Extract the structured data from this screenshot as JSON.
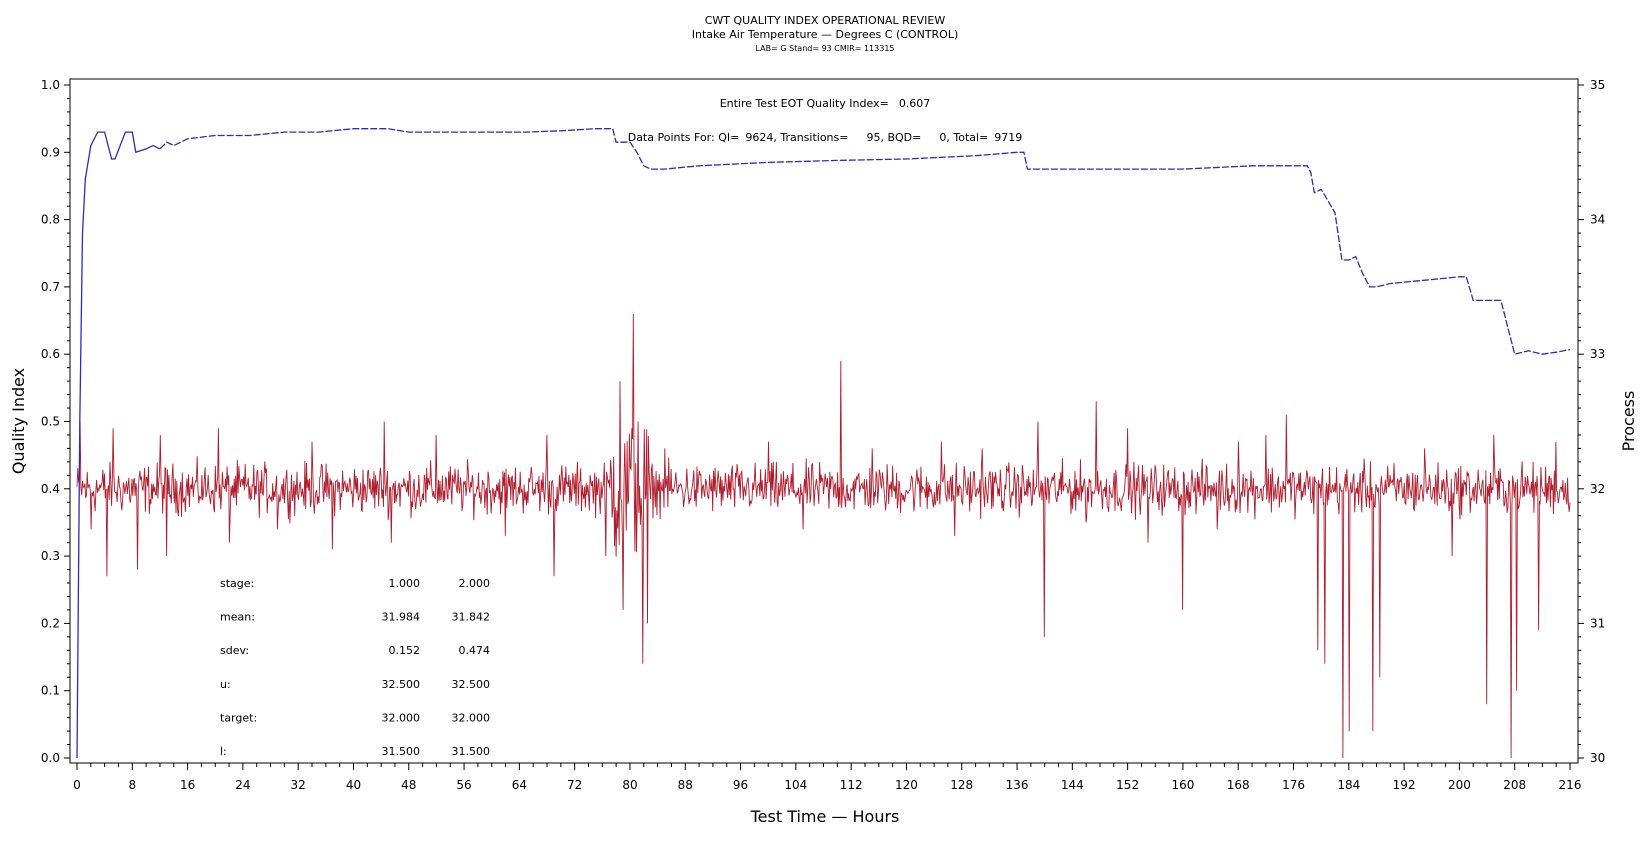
{
  "chart_data": {
    "type": "line",
    "title": "CWT QUALITY INDEX OPERATIONAL REVIEW",
    "subtitle": "Intake Air Temperature — Degrees C (CONTROL)",
    "subtitle2": "LAB= G Stand= 93 CMIR= 113315",
    "xlabel": "Test Time — Hours",
    "ylabel_left": "Quality Index",
    "ylabel_right": "Process",
    "xlim": [
      0,
      216
    ],
    "ylim_left": [
      0.0,
      1.0
    ],
    "ylim_right": [
      30,
      35
    ],
    "x_ticks": [
      "0",
      "8",
      "16",
      "24",
      "32",
      "40",
      "48",
      "56",
      "64",
      "72",
      "80",
      "88",
      "96",
      "104",
      "112",
      "120",
      "128",
      "136",
      "144",
      "152",
      "160",
      "168",
      "176",
      "184",
      "192",
      "200",
      "208",
      "216"
    ],
    "y_left_ticks": [
      "0.0",
      "0.1",
      "0.2",
      "0.3",
      "0.4",
      "0.5",
      "0.6",
      "0.7",
      "0.8",
      "0.9",
      "1.0"
    ],
    "y_right_ticks": [
      "30",
      "31",
      "32",
      "33",
      "34",
      "35"
    ],
    "annotations": {
      "eot_label": "Entire Test EOT Quality Index=",
      "eot_value": "0.607",
      "points_label": "Data Points For: QI=",
      "qi_points": "9624",
      "transitions_label": ", Transitions=",
      "transitions": "95",
      "bqd_label": ", BQD=",
      "bqd": "0",
      "total_label": ", Total=",
      "total": "9719"
    },
    "stats_table": {
      "rows": [
        {
          "label": "stage:",
          "v1": "1.000",
          "v2": "2.000"
        },
        {
          "label": "mean:",
          "v1": "31.984",
          "v2": "31.842"
        },
        {
          "label": "sdev:",
          "v1": "0.152",
          "v2": "0.474"
        },
        {
          "label": "u:",
          "v1": "32.500",
          "v2": "32.500"
        },
        {
          "label": "target:",
          "v1": "32.000",
          "v2": "32.000"
        },
        {
          "label": "l:",
          "v1": "31.500",
          "v2": "31.500"
        }
      ]
    },
    "series": [
      {
        "axis": "left",
        "color": "#2b2bbf",
        "dashed_after": 14,
        "x": [
          0,
          0.4,
          0.8,
          1.2,
          2,
          3,
          4,
          5,
          5.5,
          7,
          8,
          8.5,
          10,
          11,
          12,
          13,
          14,
          15,
          16,
          20,
          25,
          30,
          35,
          40,
          45,
          48,
          50,
          55,
          60,
          65,
          70,
          75,
          77.5,
          78,
          80,
          81,
          82,
          83,
          84,
          85,
          90,
          100,
          110,
          120,
          130,
          136,
          137,
          137.5,
          140,
          150,
          160,
          170,
          178,
          178.5,
          179,
          180,
          182,
          183,
          184,
          185,
          186,
          187,
          188,
          190,
          195,
          200,
          201,
          202,
          205,
          206,
          207,
          208,
          210,
          212,
          214,
          216
        ],
        "values": [
          0.0,
          0.5,
          0.78,
          0.86,
          0.91,
          0.93,
          0.93,
          0.89,
          0.89,
          0.93,
          0.93,
          0.9,
          0.905,
          0.91,
          0.905,
          0.915,
          0.91,
          0.915,
          0.92,
          0.925,
          0.925,
          0.93,
          0.93,
          0.935,
          0.935,
          0.93,
          0.93,
          0.93,
          0.93,
          0.93,
          0.932,
          0.935,
          0.935,
          0.915,
          0.915,
          0.9,
          0.88,
          0.875,
          0.875,
          0.875,
          0.88,
          0.885,
          0.888,
          0.89,
          0.895,
          0.9,
          0.9,
          0.875,
          0.875,
          0.875,
          0.875,
          0.88,
          0.88,
          0.87,
          0.84,
          0.845,
          0.81,
          0.74,
          0.74,
          0.745,
          0.72,
          0.7,
          0.7,
          0.705,
          0.71,
          0.715,
          0.715,
          0.68,
          0.68,
          0.68,
          0.64,
          0.6,
          0.605,
          0.6,
          0.603,
          0.607
        ]
      },
      {
        "axis": "right",
        "color": "#b01c2e",
        "baseline": 32.0,
        "spikes": [
          {
            "x": 0.5,
            "y": 32.5
          },
          {
            "x": 2.1,
            "y": 31.7
          },
          {
            "x": 4.3,
            "y": 31.35
          },
          {
            "x": 5.2,
            "y": 32.45
          },
          {
            "x": 8.8,
            "y": 31.4
          },
          {
            "x": 12,
            "y": 32.4
          },
          {
            "x": 13,
            "y": 31.5
          },
          {
            "x": 20.5,
            "y": 32.45
          },
          {
            "x": 22,
            "y": 31.6
          },
          {
            "x": 29,
            "y": 31.7
          },
          {
            "x": 34,
            "y": 32.35
          },
          {
            "x": 37,
            "y": 31.55
          },
          {
            "x": 44.5,
            "y": 32.5
          },
          {
            "x": 45.5,
            "y": 31.6
          },
          {
            "x": 52,
            "y": 32.4
          },
          {
            "x": 62,
            "y": 31.65
          },
          {
            "x": 68,
            "y": 32.4
          },
          {
            "x": 69,
            "y": 31.35
          },
          {
            "x": 76.5,
            "y": 31.5
          },
          {
            "x": 78.5,
            "y": 32.8
          },
          {
            "x": 79,
            "y": 31.1
          },
          {
            "x": 80.5,
            "y": 33.3
          },
          {
            "x": 81.2,
            "y": 32.5
          },
          {
            "x": 81.8,
            "y": 30.7
          },
          {
            "x": 82.5,
            "y": 31.0
          },
          {
            "x": 85,
            "y": 32.3
          },
          {
            "x": 100,
            "y": 32.35
          },
          {
            "x": 105,
            "y": 31.7
          },
          {
            "x": 110.5,
            "y": 32.95
          },
          {
            "x": 115,
            "y": 32.3
          },
          {
            "x": 125,
            "y": 32.35
          },
          {
            "x": 127,
            "y": 31.65
          },
          {
            "x": 131,
            "y": 32.3
          },
          {
            "x": 139,
            "y": 32.5
          },
          {
            "x": 140,
            "y": 30.9
          },
          {
            "x": 146,
            "y": 31.75
          },
          {
            "x": 147.5,
            "y": 32.65
          },
          {
            "x": 152,
            "y": 32.45
          },
          {
            "x": 155,
            "y": 31.6
          },
          {
            "x": 160,
            "y": 31.1
          },
          {
            "x": 165,
            "y": 31.7
          },
          {
            "x": 168,
            "y": 32.35
          },
          {
            "x": 172,
            "y": 32.4
          },
          {
            "x": 175,
            "y": 32.55
          },
          {
            "x": 179.5,
            "y": 30.8
          },
          {
            "x": 180.5,
            "y": 30.7
          },
          {
            "x": 183.2,
            "y": 30.0
          },
          {
            "x": 184,
            "y": 30.2
          },
          {
            "x": 187.5,
            "y": 30.2
          },
          {
            "x": 188.5,
            "y": 30.6
          },
          {
            "x": 195,
            "y": 32.3
          },
          {
            "x": 199,
            "y": 31.5
          },
          {
            "x": 204,
            "y": 30.4
          },
          {
            "x": 205,
            "y": 32.4
          },
          {
            "x": 207.5,
            "y": 30.0
          },
          {
            "x": 208.3,
            "y": 30.5
          },
          {
            "x": 211.5,
            "y": 30.95
          },
          {
            "x": 214,
            "y": 32.35
          }
        ]
      }
    ]
  }
}
